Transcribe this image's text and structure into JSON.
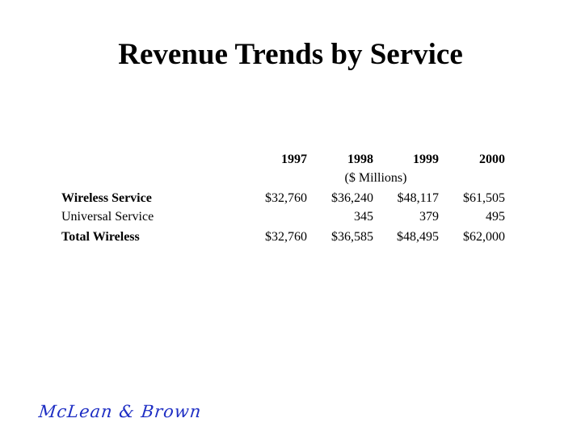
{
  "title": "Revenue Trends by Service",
  "table": {
    "years": [
      "1997",
      "1998",
      "1999",
      "2000"
    ],
    "units": "($ Millions)",
    "rows": [
      {
        "label": "Wireless Service",
        "bold": true,
        "values": [
          "$32,760",
          "$36,240",
          "$48,117",
          "$61,505"
        ]
      },
      {
        "label": "Universal Service",
        "bold": false,
        "values": [
          "",
          "345",
          "379",
          "495"
        ]
      },
      {
        "label": "Total Wireless",
        "bold": true,
        "values": [
          "$32,760",
          "$36,585",
          "$48,495",
          "$62,000"
        ]
      }
    ]
  },
  "logo": "McLean & Brown",
  "colors": {
    "logo": "#1f2fc4"
  }
}
